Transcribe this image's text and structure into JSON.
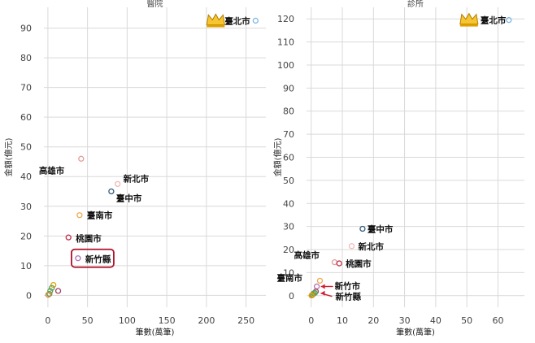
{
  "chart_data": [
    {
      "type": "scatter",
      "title": "醫院",
      "xlabel": "筆數(萬筆)",
      "ylabel": "金額(億元)",
      "xlim": [
        -5,
        275
      ],
      "ylim": [
        -4,
        97
      ],
      "xticks": [
        0,
        50,
        100,
        150,
        200,
        250
      ],
      "yticks": [
        0,
        10,
        20,
        30,
        40,
        50,
        60,
        70,
        80,
        90
      ],
      "grid": true,
      "points": [
        {
          "x": 262,
          "y": 92.5,
          "color": "#7fb8e6"
        },
        {
          "x": 42,
          "y": 46,
          "color": "#e89a9a"
        },
        {
          "x": 88,
          "y": 37.5,
          "color": "#f2b8b8"
        },
        {
          "x": 80,
          "y": 35,
          "color": "#2f5f7f"
        },
        {
          "x": 40,
          "y": 27,
          "color": "#f0a850"
        },
        {
          "x": 26,
          "y": 19.5,
          "color": "#c0304a"
        },
        {
          "x": 38,
          "y": 12.5,
          "color": "#b070b0"
        },
        {
          "x": 7,
          "y": 3.5,
          "color": "#e0a000"
        },
        {
          "x": 5,
          "y": 2.5,
          "color": "#60a060"
        },
        {
          "x": 3,
          "y": 1.5,
          "color": "#5aa05a"
        },
        {
          "x": 13,
          "y": 1.5,
          "color": "#a04060"
        },
        {
          "x": 2,
          "y": 0.5,
          "color": "#6a9e3a"
        },
        {
          "x": 0.5,
          "y": 0.2,
          "color": "#d08040"
        }
      ],
      "labels": [
        {
          "text": "臺北市",
          "x": 262,
          "y": 92.5
        },
        {
          "text": "高雄市",
          "x": 42,
          "y": 46
        },
        {
          "text": "新北市",
          "x": 88,
          "y": 37.5
        },
        {
          "text": "臺中市",
          "x": 80,
          "y": 35
        },
        {
          "text": "臺南市",
          "x": 40,
          "y": 27
        },
        {
          "text": "桃園市",
          "x": 26,
          "y": 19.5
        },
        {
          "text": "新竹縣",
          "x": 38,
          "y": 12.5
        }
      ],
      "highlight": "新竹縣"
    },
    {
      "type": "scatter",
      "title": "診所",
      "xlabel": "筆數(萬筆)",
      "ylabel": "金額(億元)",
      "xlim": [
        -1.5,
        68.5
      ],
      "ylim": [
        -5,
        125
      ],
      "xticks": [
        0,
        10,
        20,
        30,
        40,
        50,
        60
      ],
      "yticks": [
        0,
        10,
        20,
        30,
        40,
        50,
        60,
        70,
        80,
        90,
        100,
        110,
        120
      ],
      "grid": true,
      "points": [
        {
          "x": 63.5,
          "y": 119.5,
          "color": "#7fb8e6"
        },
        {
          "x": 16.5,
          "y": 29,
          "color": "#2f5f7f"
        },
        {
          "x": 13,
          "y": 21.5,
          "color": "#f2b8b8"
        },
        {
          "x": 7.5,
          "y": 14.5,
          "color": "#e89a9a"
        },
        {
          "x": 9,
          "y": 14,
          "color": "#c0304a"
        },
        {
          "x": 2.8,
          "y": 6.5,
          "color": "#f0a850"
        },
        {
          "x": 1.8,
          "y": 4,
          "color": "#b070b0"
        },
        {
          "x": 1.5,
          "y": 1.8,
          "color": "#a04060"
        },
        {
          "x": 1.2,
          "y": 1.2,
          "color": "#60a060"
        },
        {
          "x": 0.8,
          "y": 1,
          "color": "#5aa05a"
        },
        {
          "x": 0.5,
          "y": 0.5,
          "color": "#6a9e3a"
        },
        {
          "x": 0.3,
          "y": 0.2,
          "color": "#d08040"
        },
        {
          "x": 0.1,
          "y": 0.1,
          "color": "#e0a000"
        }
      ],
      "labels": [
        {
          "text": "臺北市",
          "x": 63.5,
          "y": 119.5
        },
        {
          "text": "臺中市",
          "x": 16.5,
          "y": 29
        },
        {
          "text": "新北市",
          "x": 13,
          "y": 21.5
        },
        {
          "text": "高雄市",
          "x": 7.5,
          "y": 14.5
        },
        {
          "text": "桃園市",
          "x": 9,
          "y": 14
        },
        {
          "text": "臺南市",
          "x": 2.8,
          "y": 6.5
        },
        {
          "text": "新竹市",
          "x": 1.8,
          "y": 4
        },
        {
          "text": "新竹縣",
          "x": 1.5,
          "y": 1.8
        }
      ]
    }
  ]
}
